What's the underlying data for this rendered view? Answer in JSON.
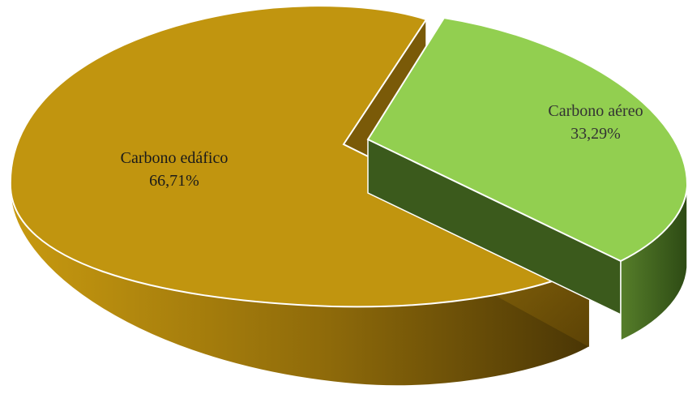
{
  "chart_data": {
    "type": "pie",
    "style": "3d-exploded",
    "title": "",
    "slices": [
      {
        "label": "Carbono edáfico",
        "value": 66.71,
        "value_text": "66,71%",
        "color": "#c1950f"
      },
      {
        "label": "Carbono aéreo",
        "value": 33.29,
        "value_text": "33,29%",
        "color": "#92cf50"
      }
    ],
    "legend": "none"
  }
}
